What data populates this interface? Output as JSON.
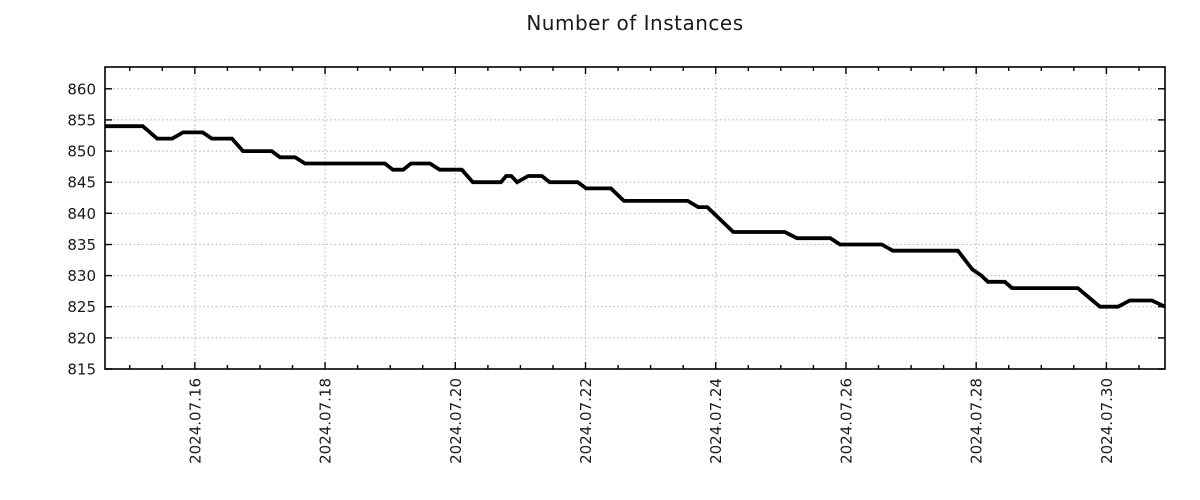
{
  "chart_data": {
    "type": "line",
    "title": "Number of Instances",
    "xlabel": "",
    "ylabel": "",
    "legend": "none",
    "grid": {
      "show": true,
      "style": "dotted",
      "color": "#b0b0b0"
    },
    "xlim": [
      14.62,
      30.9
    ],
    "ylim": [
      815,
      863.5
    ],
    "x_minor_tick_step": 0.5,
    "x_ticks": [
      {
        "day": 16,
        "label": "2024.07.16"
      },
      {
        "day": 18,
        "label": "2024.07.18"
      },
      {
        "day": 20,
        "label": "2024.07.20"
      },
      {
        "day": 22,
        "label": "2024.07.22"
      },
      {
        "day": 24,
        "label": "2024.07.24"
      },
      {
        "day": 26,
        "label": "2024.07.26"
      },
      {
        "day": 28,
        "label": "2024.07.28"
      },
      {
        "day": 30,
        "label": "2024.07.30"
      }
    ],
    "y_ticks": [
      815,
      820,
      825,
      830,
      835,
      840,
      845,
      850,
      855,
      860
    ],
    "series": [
      {
        "name": "Number of Instances",
        "color": "#000000",
        "line_width": 3.8,
        "points": [
          [
            14.62,
            854
          ],
          [
            15.2,
            854
          ],
          [
            15.42,
            852
          ],
          [
            15.65,
            852
          ],
          [
            15.82,
            853
          ],
          [
            16.12,
            853
          ],
          [
            16.26,
            852
          ],
          [
            16.57,
            852
          ],
          [
            16.74,
            850
          ],
          [
            17.18,
            850
          ],
          [
            17.31,
            849
          ],
          [
            17.54,
            849
          ],
          [
            17.69,
            848
          ],
          [
            18.92,
            848
          ],
          [
            19.04,
            847
          ],
          [
            19.2,
            847
          ],
          [
            19.32,
            848
          ],
          [
            19.61,
            848
          ],
          [
            19.76,
            847
          ],
          [
            20.1,
            847
          ],
          [
            20.27,
            845
          ],
          [
            20.7,
            845
          ],
          [
            20.78,
            846
          ],
          [
            20.86,
            846
          ],
          [
            20.95,
            845
          ],
          [
            21.12,
            846
          ],
          [
            21.33,
            846
          ],
          [
            21.45,
            845
          ],
          [
            21.88,
            845
          ],
          [
            22.01,
            844
          ],
          [
            22.39,
            844
          ],
          [
            22.59,
            842
          ],
          [
            23.57,
            842
          ],
          [
            23.73,
            841
          ],
          [
            23.87,
            841
          ],
          [
            24.27,
            837
          ],
          [
            25.06,
            837
          ],
          [
            25.25,
            836
          ],
          [
            25.76,
            836
          ],
          [
            25.91,
            835
          ],
          [
            26.55,
            835
          ],
          [
            26.72,
            834
          ],
          [
            27.72,
            834
          ],
          [
            27.94,
            831
          ],
          [
            28.08,
            830
          ],
          [
            28.18,
            829
          ],
          [
            28.44,
            829
          ],
          [
            28.55,
            828
          ],
          [
            29.56,
            828
          ],
          [
            29.9,
            825
          ],
          [
            30.18,
            825
          ],
          [
            30.36,
            826
          ],
          [
            30.7,
            826
          ],
          [
            30.9,
            825
          ]
        ]
      }
    ]
  }
}
